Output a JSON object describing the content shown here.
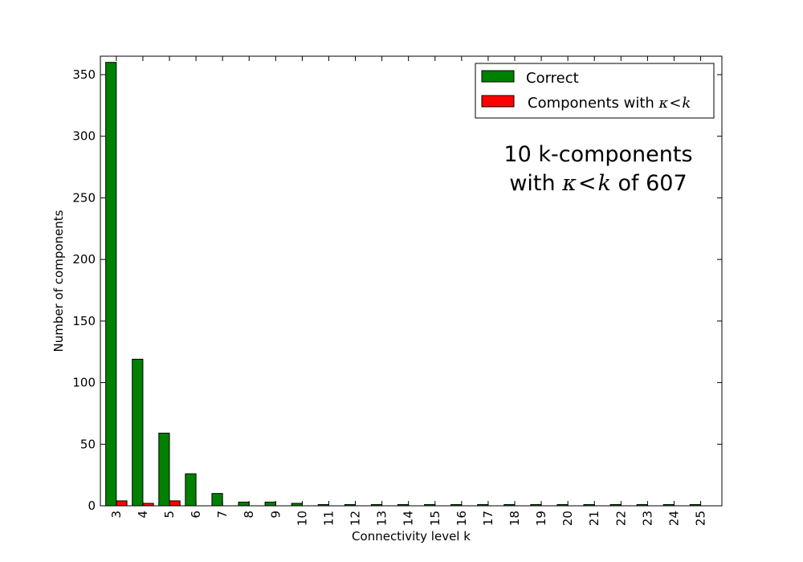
{
  "chart_data": {
    "type": "bar",
    "title": "",
    "xlabel": "Connectivity level k",
    "ylabel": "Number of components",
    "categories": [
      "3",
      "4",
      "5",
      "6",
      "7",
      "8",
      "9",
      "10",
      "11",
      "12",
      "13",
      "14",
      "15",
      "16",
      "17",
      "18",
      "19",
      "20",
      "21",
      "22",
      "23",
      "24",
      "25"
    ],
    "series": [
      {
        "name": "Correct",
        "color": "#008000",
        "values": [
          360,
          119,
          59,
          26,
          10,
          3,
          3,
          2,
          1,
          1,
          1,
          1,
          1,
          1,
          1,
          1,
          1,
          1,
          1,
          1,
          1,
          1,
          1
        ]
      },
      {
        "name_prefix": "Components with ",
        "name_math_a": "κ",
        "name_math_op": "<",
        "name_math_b": "k",
        "color": "#ff0000",
        "values": [
          4,
          2,
          4,
          0,
          0,
          0,
          0,
          0,
          0,
          0,
          0,
          0,
          0,
          0,
          0,
          0,
          0,
          0,
          0,
          0,
          0,
          0,
          0
        ]
      }
    ],
    "ylim": [
      0,
      365
    ],
    "yticks": [
      0,
      50,
      100,
      150,
      200,
      250,
      300,
      350
    ],
    "grid": false,
    "legend_position": "top-right",
    "annotation": {
      "line1": "10 k-components",
      "line2_prefix": "with ",
      "line2_math_a": "κ",
      "line2_math_op": "<",
      "line2_math_b": "k",
      "line2_suffix": " of 607"
    }
  }
}
